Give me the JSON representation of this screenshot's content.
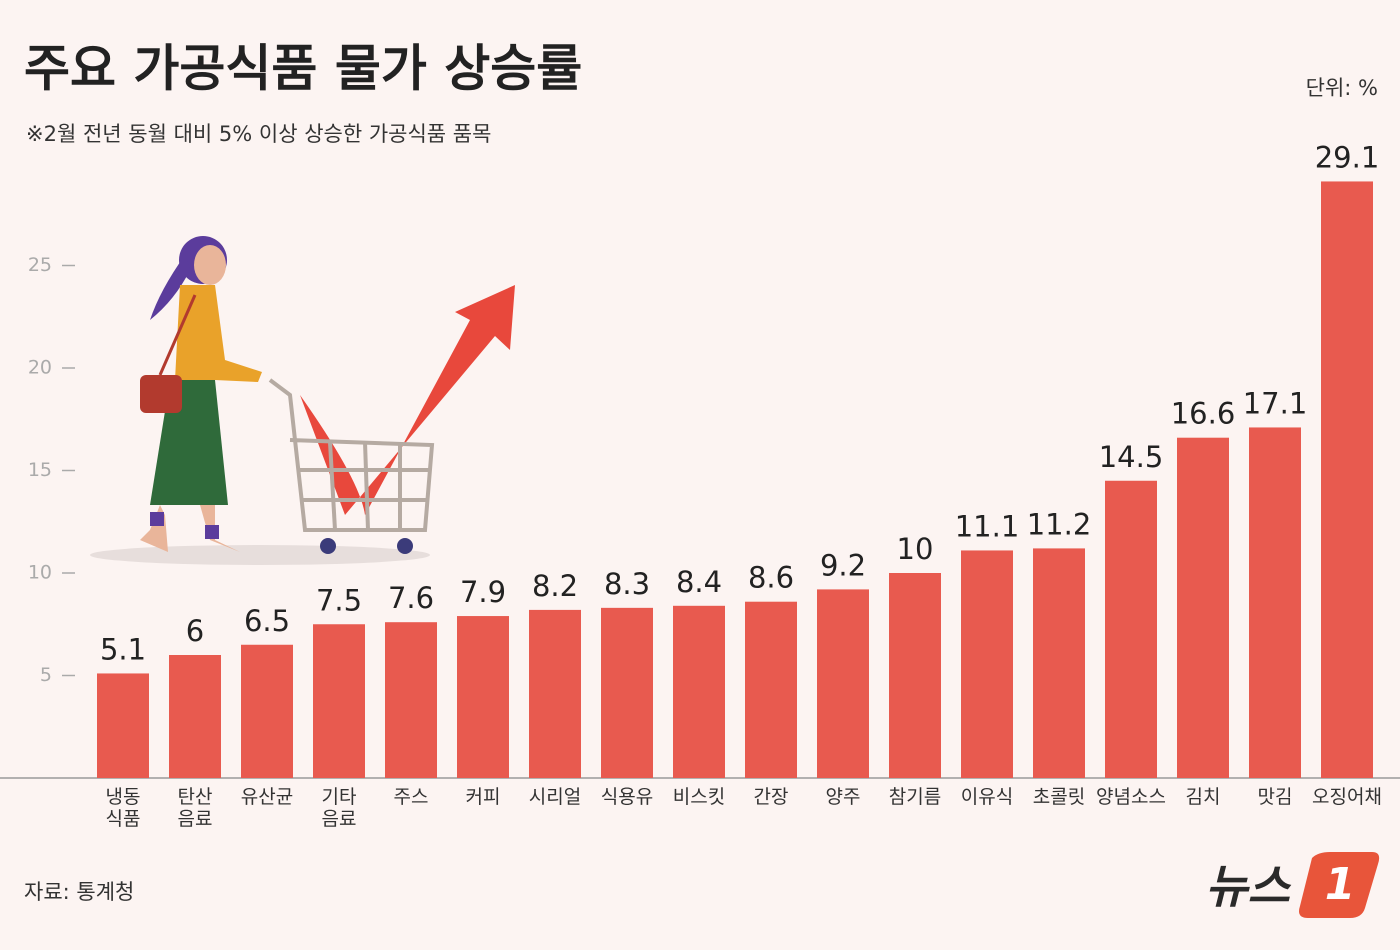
{
  "chart_data": {
    "type": "bar",
    "title": "주요 가공식품 물가 상승률",
    "subtitle": "※2월 전년 동월 대비 5% 이상 상승한 가공식품 품목",
    "unit_label": "단위: %",
    "source": "자료: 통계청",
    "logo_text": "뉴스",
    "logo_mark": "1",
    "categories": [
      "냉동\n식품",
      "탄산\n음료",
      "유산균",
      "기타\n음료",
      "주스",
      "커피",
      "시리얼",
      "식용유",
      "비스킷",
      "간장",
      "양주",
      "참기름",
      "이유식",
      "초콜릿",
      "양념소스",
      "김치",
      "맛김",
      "오징어채"
    ],
    "values": [
      5.1,
      6,
      6.5,
      7.5,
      7.6,
      7.9,
      8.2,
      8.3,
      8.4,
      8.6,
      9.2,
      10,
      11.1,
      11.2,
      14.5,
      16.6,
      17.1,
      29.1
    ],
    "color": "#e85a4f",
    "ylim": [
      0,
      30
    ],
    "yticks": [
      5,
      10,
      15,
      20,
      25
    ],
    "grid": false
  }
}
